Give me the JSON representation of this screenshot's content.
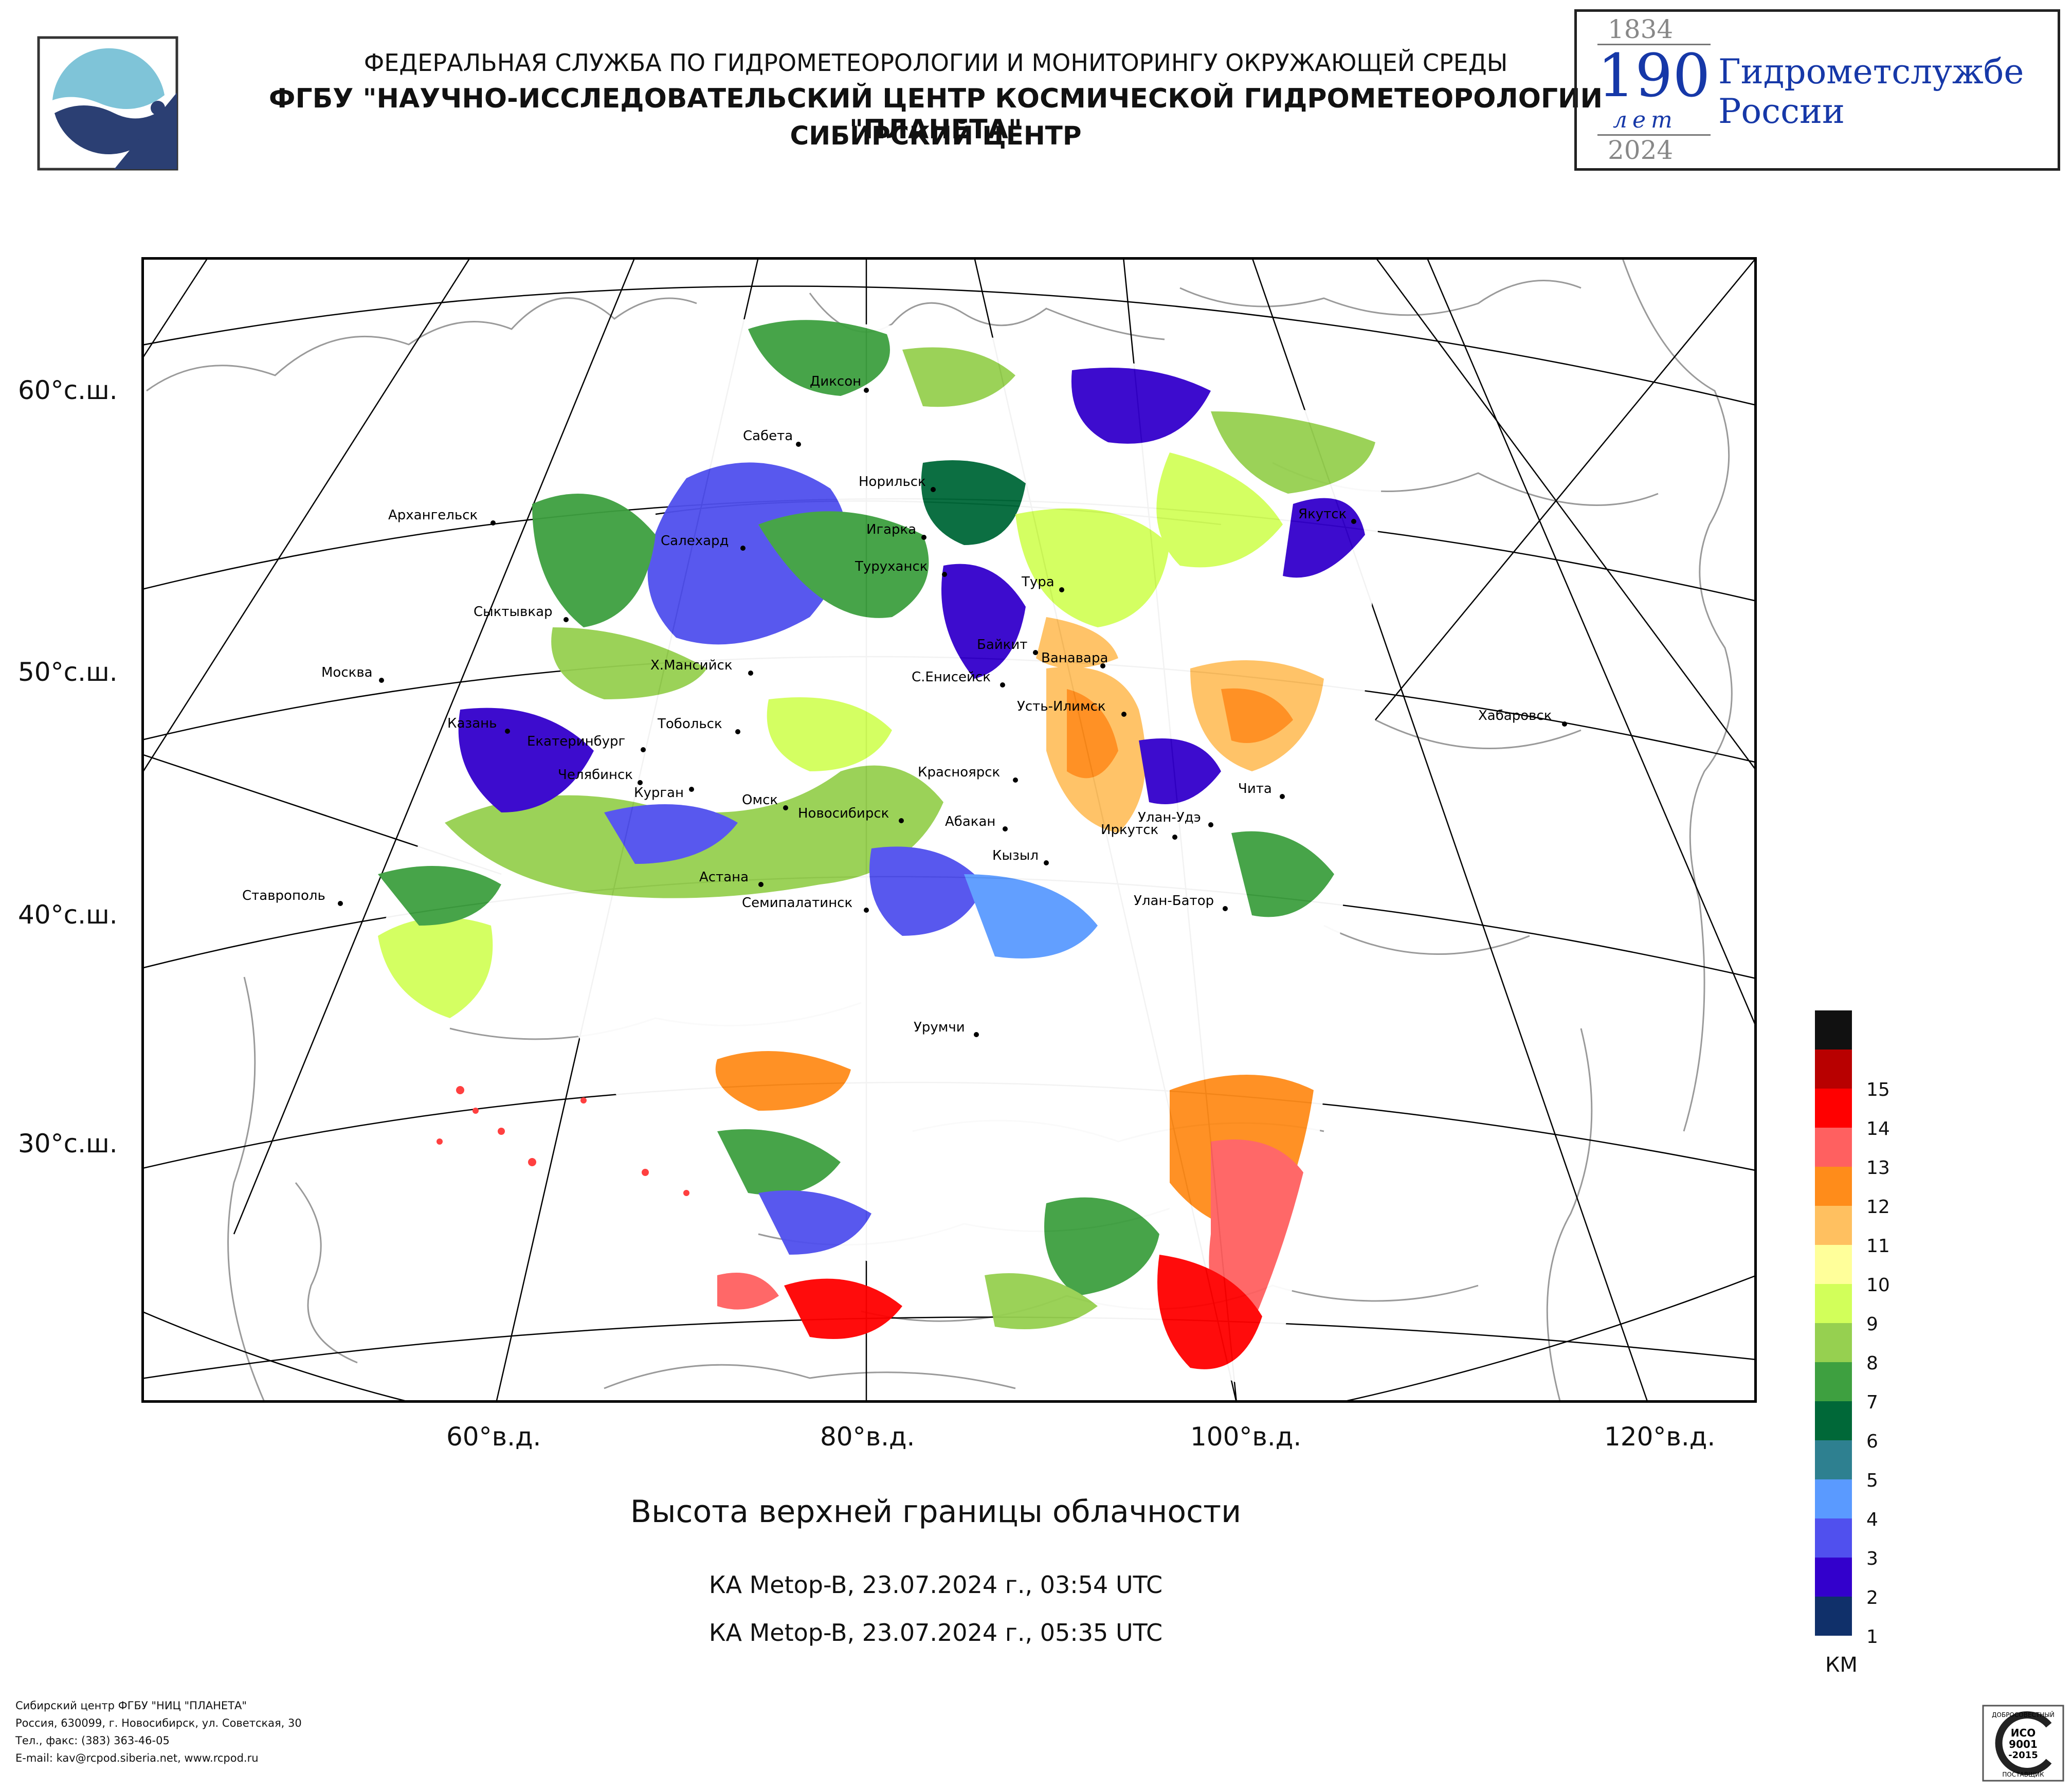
{
  "header": {
    "line1": "ФЕДЕРАЛЬНАЯ СЛУЖБА ПО ГИДРОМЕТЕОРОЛОГИИ И МОНИТОРИНГУ ОКРУЖАЮЩЕЙ СРЕДЫ",
    "line2": "ФГБУ \"НАУЧНО-ИССЛЕДОВАТЕЛЬСКИЙ ЦЕНТР КОСМИЧЕСКОЙ ГИДРОМЕТЕОРОЛОГИИ \"ПЛАНЕТА\"",
    "line3": "СИБИРСКИЙ ЦЕНТР"
  },
  "anniversary": {
    "year_start": "1834",
    "number": "190",
    "unit": "лет",
    "year_end": "2024",
    "name_line1": "Гидрометслужбе",
    "name_line2": "России"
  },
  "axes": {
    "lat_labels": [
      "60°с.ш.",
      "50°с.ш.",
      "40°с.ш.",
      "30°с.ш."
    ],
    "lon_labels": [
      "60°в.д.",
      "80°в.д.",
      "100°в.д.",
      "120°в.д."
    ]
  },
  "cities": [
    {
      "name": "Диксон"
    },
    {
      "name": "Сабета"
    },
    {
      "name": "Норильск"
    },
    {
      "name": "Якутск"
    },
    {
      "name": "Архангельск"
    },
    {
      "name": "Салехард"
    },
    {
      "name": "Игарка"
    },
    {
      "name": "Туруханск"
    },
    {
      "name": "Тура"
    },
    {
      "name": "Сыктывкар"
    },
    {
      "name": "Байкит"
    },
    {
      "name": "Ванавара"
    },
    {
      "name": "Москва"
    },
    {
      "name": "Х.Мансийск"
    },
    {
      "name": "С.Енисейск"
    },
    {
      "name": "Усть-Илимск"
    },
    {
      "name": "Хабаровск"
    },
    {
      "name": "Казань"
    },
    {
      "name": "Тобольск"
    },
    {
      "name": "Екатеринбург"
    },
    {
      "name": "Красноярск"
    },
    {
      "name": "Челябинск"
    },
    {
      "name": "Курган"
    },
    {
      "name": "Омск"
    },
    {
      "name": "Новосибирск"
    },
    {
      "name": "Абакан"
    },
    {
      "name": "Чита"
    },
    {
      "name": "Улан-Удэ"
    },
    {
      "name": "Иркутск"
    },
    {
      "name": "Кызыл"
    },
    {
      "name": "Астана"
    },
    {
      "name": "Ставрополь"
    },
    {
      "name": "Семипалатинск"
    },
    {
      "name": "Улан-Батор"
    },
    {
      "name": "Урумчи"
    }
  ],
  "legend": {
    "unit": "КМ",
    "items": [
      {
        "label": "",
        "color": "#111111"
      },
      {
        "label": "15",
        "color": "#b80000"
      },
      {
        "label": "14",
        "color": "#ff0000"
      },
      {
        "label": "13",
        "color": "#ff6060"
      },
      {
        "label": "12",
        "color": "#ff8c1a"
      },
      {
        "label": "11",
        "color": "#ffc060"
      },
      {
        "label": "10",
        "color": "#ffff9a"
      },
      {
        "label": "9",
        "color": "#d2ff5a"
      },
      {
        "label": "8",
        "color": "#96d050"
      },
      {
        "label": "7",
        "color": "#3ea040"
      },
      {
        "label": "6",
        "color": "#006838"
      },
      {
        "label": "5",
        "color": "#2e8090"
      },
      {
        "label": "4",
        "color": "#5a9aff"
      },
      {
        "label": "3",
        "color": "#5050ee"
      },
      {
        "label": "2",
        "color": "#3300cc"
      },
      {
        "label": "1",
        "color": "#10306a"
      }
    ]
  },
  "title": "Высота верхней границы облачности",
  "passes": [
    "КА Metop-B, 23.07.2024 г., 03:54 UTC",
    "КА Metop-B, 23.07.2024 г., 05:35 UTC"
  ],
  "footer": {
    "line1": "Сибирский центр ФГБУ \"НИЦ \"ПЛАНЕТА\"",
    "line2": "Россия, 630099, г. Новосибирск, ул. Советская, 30",
    "line3": "Тел., факс: (383) 363-46-05",
    "line4": "E-mail: kav@rcpod.siberia.net, www.rcpod.ru"
  },
  "certificate": {
    "top": "ДОБРОСОВЕСТНЫЙ",
    "l1": "ИСО",
    "l2": "9001",
    "l3": "-2015",
    "bottom": "ПОСТАВЩИК"
  }
}
